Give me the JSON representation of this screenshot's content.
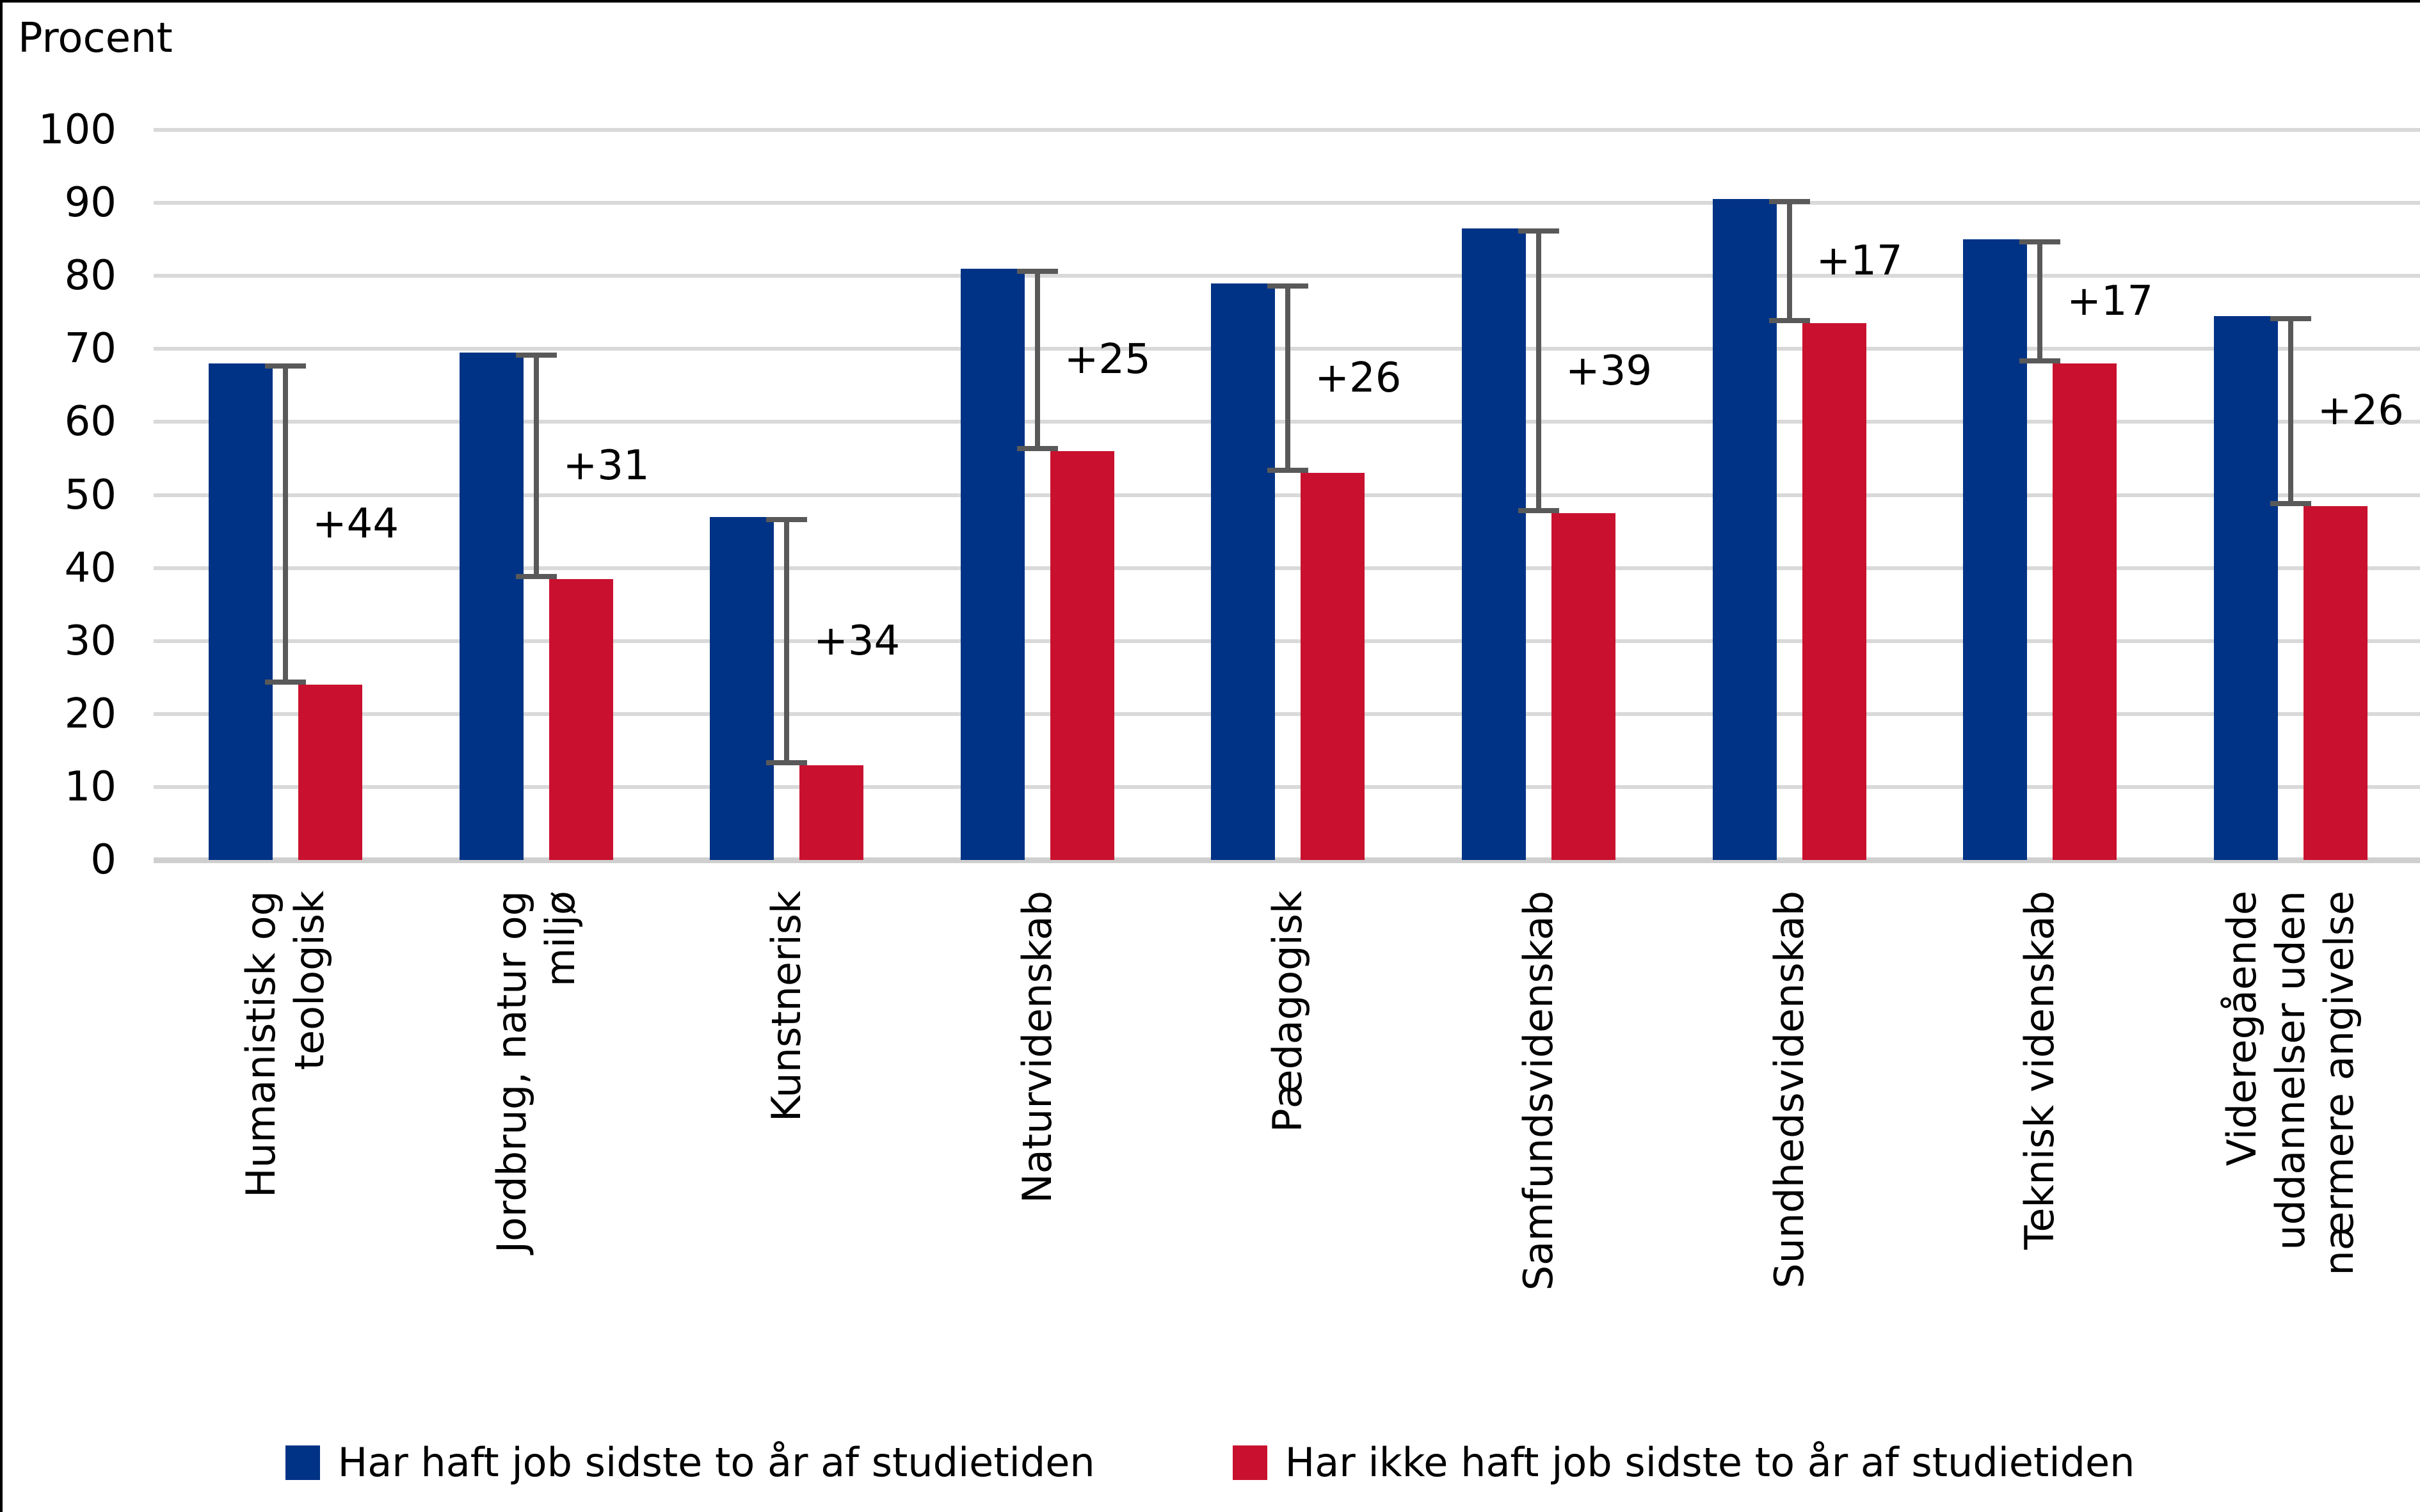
{
  "y_axis": {
    "title": "Procent",
    "ticks": [
      "100",
      "90",
      "80",
      "70",
      "60",
      "50",
      "40",
      "30",
      "20",
      "10",
      "0"
    ]
  },
  "chart_data": {
    "type": "bar",
    "title": "Procent",
    "xlabel": "",
    "ylabel": "Procent",
    "ylim": [
      0,
      100
    ],
    "grid": true,
    "legend_position": "bottom",
    "categories": [
      "Humanistisk og teologisk",
      "Jordbrug, natur og miljø",
      "Kunstnerisk",
      "Naturvidenskab",
      "Pædagogisk",
      "Samfundsvidenskab",
      "Sundhedsvidenskab",
      "Teknisk videnskab",
      "Videregående uddannelser uden nærmere angivelse"
    ],
    "category_lines": [
      [
        "Humanistisk og",
        "teologisk"
      ],
      [
        "Jordbrug, natur og",
        "miljø"
      ],
      [
        "Kunstnerisk"
      ],
      [
        "Naturvidenskab"
      ],
      [
        "Pædagogisk"
      ],
      [
        "Samfundsvidenskab"
      ],
      [
        "Sundhedsvidenskab"
      ],
      [
        "Teknisk videnskab"
      ],
      [
        "Videregående",
        "uddannelser uden",
        "nærmere angivelse"
      ]
    ],
    "series": [
      {
        "name": "Har haft job sidste to år af studietiden",
        "color": "#003385",
        "values": [
          68,
          69.5,
          47,
          81,
          79,
          86.5,
          90.5,
          85,
          74.5
        ]
      },
      {
        "name": "Har ikke haft job sidste to år af studietiden",
        "color": "#c9112f",
        "values": [
          24,
          38.5,
          13,
          56,
          53,
          47.5,
          73.5,
          68,
          48.5
        ]
      }
    ],
    "diff_labels": [
      "+44",
      "+31",
      "+34",
      "+25",
      "+26",
      "+39",
      "+17",
      "+17",
      "+26"
    ],
    "diff_marker_color": "#595959",
    "gridline_color": "#d9d9d9"
  }
}
